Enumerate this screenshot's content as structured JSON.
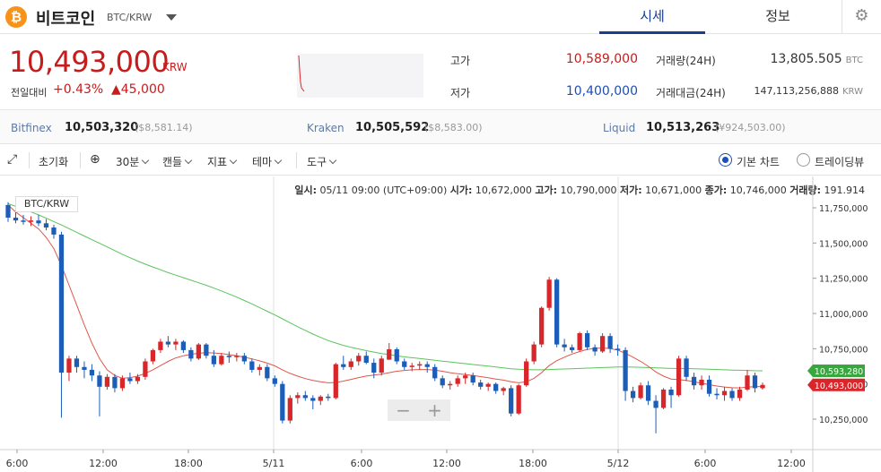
{
  "header": {
    "coin_symbol": "₿",
    "coin_name": "비트코인",
    "pair": "BTC/KRW",
    "tabs": [
      {
        "label": "시세"
      },
      {
        "label": "정보"
      }
    ],
    "settings_icon": "gear-icon"
  },
  "price": {
    "current": "10,493,000",
    "unit": "KRW",
    "change_label": "전일대비",
    "change_pct": "+0.43%",
    "change_amt": "▲45,000",
    "high_label": "고가",
    "high": "10,589,000",
    "low_label": "저가",
    "low": "10,400,000",
    "vol_label": "거래량(24H)",
    "vol": "13,805.505",
    "vol_unit": "BTC",
    "amount_label": "거래대금(24H)",
    "amount": "147,113,256,888",
    "amount_unit": "KRW"
  },
  "exchanges": [
    {
      "name": "Bitfinex",
      "krw": "10,503,320",
      "usd": "($8,581.14)"
    },
    {
      "name": "Kraken",
      "krw": "10,505,592",
      "usd": "($8,583.00)"
    },
    {
      "name": "Liquid",
      "krw": "10,513,263",
      "usd": "(¥924,503.00)"
    }
  ],
  "toolbar": {
    "expand_icon": "expand-icon",
    "reset": "초기화",
    "globe_icon": "globe-icon",
    "interval": "30분",
    "candle": "캔들",
    "indicator": "지표",
    "theme": "테마",
    "tools": "도구",
    "basic_chart": "기본 차트",
    "tradingview": "트레이딩뷰"
  },
  "ohlc": {
    "date_label": "일시:",
    "date": "05/11 09:00 (UTC+09:00)",
    "open_label": "시가:",
    "open": "10,672,000",
    "high_label": "고가:",
    "high": "10,790,000",
    "low_label": "저가:",
    "low": "10,671,000",
    "close_label": "종가:",
    "close": "10,746,000",
    "vol_label": "거래량:",
    "vol": "191.914"
  },
  "zoom": {
    "minus": "−",
    "plus": "+"
  },
  "chart_data": {
    "type": "candlestick",
    "title": "BTC/KRW",
    "x_ticks": [
      "6:00",
      "12:00",
      "18:00",
      "5/11",
      "6:00",
      "12:00",
      "18:00",
      "5/12",
      "6:00",
      "12:00"
    ],
    "y_ticks": [
      "11,750,000",
      "11,500,000",
      "11,250,000",
      "11,000,000",
      "10,750,000",
      "10,500,000",
      "10,250,000"
    ],
    "ylim": [
      10150000,
      11820000
    ],
    "badges": [
      {
        "label": "10,593,280",
        "value": 10593280,
        "color": "#3aa640"
      },
      {
        "label": "10,493,000",
        "value": 10493000,
        "color": "#d9262a"
      }
    ],
    "up_color": "#d9262a",
    "down_color": "#1c5db8",
    "ma_short_color": "#e0564a",
    "ma_long_color": "#5cc35c",
    "candles": [
      [
        11770000,
        11790000,
        11650000,
        11680000
      ],
      [
        11680000,
        11720000,
        11640000,
        11660000
      ],
      [
        11660000,
        11700000,
        11630000,
        11650000
      ],
      [
        11650000,
        11690000,
        11620000,
        11660000
      ],
      [
        11660000,
        11700000,
        11620000,
        11640000
      ],
      [
        11640000,
        11670000,
        11590000,
        11610000
      ],
      [
        11610000,
        11630000,
        11530000,
        11560000
      ],
      [
        11560000,
        11580000,
        10260000,
        10580000
      ],
      [
        10580000,
        10700000,
        10520000,
        10680000
      ],
      [
        10680000,
        10700000,
        10580000,
        10620000
      ],
      [
        10620000,
        10660000,
        10540000,
        10600000
      ],
      [
        10600000,
        10640000,
        10520000,
        10560000
      ],
      [
        10560000,
        10590000,
        10270000,
        10480000
      ],
      [
        10480000,
        10570000,
        10460000,
        10550000
      ],
      [
        10550000,
        10570000,
        10440000,
        10470000
      ],
      [
        10470000,
        10560000,
        10450000,
        10540000
      ],
      [
        10540000,
        10580000,
        10500000,
        10520000
      ],
      [
        10520000,
        10570000,
        10500000,
        10550000
      ],
      [
        10550000,
        10680000,
        10530000,
        10660000
      ],
      [
        10660000,
        10750000,
        10640000,
        10740000
      ],
      [
        10740000,
        10820000,
        10720000,
        10800000
      ],
      [
        10800000,
        10840000,
        10760000,
        10780000
      ],
      [
        10780000,
        10820000,
        10740000,
        10800000
      ],
      [
        10800000,
        10810000,
        10720000,
        10740000
      ],
      [
        10740000,
        10760000,
        10660000,
        10680000
      ],
      [
        10680000,
        10790000,
        10670000,
        10780000
      ],
      [
        10780000,
        10790000,
        10680000,
        10700000
      ],
      [
        10700000,
        10740000,
        10620000,
        10640000
      ],
      [
        10640000,
        10720000,
        10630000,
        10700000
      ],
      [
        10700000,
        10730000,
        10650000,
        10690000
      ],
      [
        10690000,
        10720000,
        10660000,
        10700000
      ],
      [
        10700000,
        10720000,
        10640000,
        10660000
      ],
      [
        10660000,
        10680000,
        10580000,
        10600000
      ],
      [
        10600000,
        10640000,
        10560000,
        10620000
      ],
      [
        10620000,
        10640000,
        10520000,
        10540000
      ],
      [
        10540000,
        10560000,
        10480000,
        10500000
      ],
      [
        10500000,
        10520000,
        10220000,
        10240000
      ],
      [
        10240000,
        10420000,
        10220000,
        10400000
      ],
      [
        10400000,
        10440000,
        10360000,
        10420000
      ],
      [
        10420000,
        10450000,
        10380000,
        10400000
      ],
      [
        10400000,
        10420000,
        10320000,
        10380000
      ],
      [
        10380000,
        10420000,
        10350000,
        10410000
      ],
      [
        10410000,
        10430000,
        10380000,
        10400000
      ],
      [
        10400000,
        10650000,
        10390000,
        10640000
      ],
      [
        10640000,
        10700000,
        10600000,
        10620000
      ],
      [
        10620000,
        10680000,
        10600000,
        10660000
      ],
      [
        10660000,
        10720000,
        10630000,
        10700000
      ],
      [
        10700000,
        10730000,
        10640000,
        10650000
      ],
      [
        10650000,
        10680000,
        10540000,
        10580000
      ],
      [
        10580000,
        10700000,
        10560000,
        10680000
      ],
      [
        10672000,
        10790000,
        10671000,
        10746000
      ],
      [
        10746000,
        10760000,
        10640000,
        10660000
      ],
      [
        10660000,
        10680000,
        10600000,
        10620000
      ],
      [
        10620000,
        10650000,
        10590000,
        10630000
      ],
      [
        10630000,
        10660000,
        10600000,
        10640000
      ],
      [
        10640000,
        10660000,
        10580000,
        10620000
      ],
      [
        10620000,
        10640000,
        10520000,
        10540000
      ],
      [
        10540000,
        10560000,
        10470000,
        10490000
      ],
      [
        10490000,
        10520000,
        10460000,
        10500000
      ],
      [
        10500000,
        10560000,
        10480000,
        10540000
      ],
      [
        10540000,
        10580000,
        10500000,
        10560000
      ],
      [
        10560000,
        10580000,
        10490000,
        10510000
      ],
      [
        10510000,
        10530000,
        10460000,
        10480000
      ],
      [
        10480000,
        10510000,
        10450000,
        10500000
      ],
      [
        10500000,
        10510000,
        10430000,
        10450000
      ],
      [
        10450000,
        10480000,
        10420000,
        10470000
      ],
      [
        10470000,
        10490000,
        10270000,
        10290000
      ],
      [
        10290000,
        10500000,
        10280000,
        10490000
      ],
      [
        10490000,
        10680000,
        10480000,
        10660000
      ],
      [
        10660000,
        10800000,
        10640000,
        10780000
      ],
      [
        10780000,
        11050000,
        10760000,
        11040000
      ],
      [
        11040000,
        11260000,
        11020000,
        11240000
      ],
      [
        11240000,
        11250000,
        10760000,
        10780000
      ],
      [
        10780000,
        10820000,
        10730000,
        10760000
      ],
      [
        10760000,
        10780000,
        10720000,
        10740000
      ],
      [
        10740000,
        10870000,
        10730000,
        10860000
      ],
      [
        10860000,
        10880000,
        10740000,
        10760000
      ],
      [
        10760000,
        10780000,
        10700000,
        10730000
      ],
      [
        10730000,
        10860000,
        10720000,
        10840000
      ],
      [
        10840000,
        10860000,
        10720000,
        10750000
      ],
      [
        10750000,
        10780000,
        10700000,
        10740000
      ],
      [
        10740000,
        10760000,
        10380000,
        10450000
      ],
      [
        10450000,
        10480000,
        10370000,
        10400000
      ],
      [
        10400000,
        10510000,
        10390000,
        10490000
      ],
      [
        10490000,
        10520000,
        10350000,
        10380000
      ],
      [
        10380000,
        10420000,
        10150000,
        10330000
      ],
      [
        10330000,
        10470000,
        10320000,
        10460000
      ],
      [
        10460000,
        10480000,
        10330000,
        10420000
      ],
      [
        10420000,
        10700000,
        10410000,
        10680000
      ],
      [
        10680000,
        10700000,
        10520000,
        10550000
      ],
      [
        10550000,
        10580000,
        10460000,
        10490000
      ],
      [
        10490000,
        10560000,
        10460000,
        10530000
      ],
      [
        10530000,
        10560000,
        10410000,
        10430000
      ],
      [
        10430000,
        10470000,
        10390000,
        10420000
      ],
      [
        10420000,
        10480000,
        10380000,
        10450000
      ],
      [
        10450000,
        10470000,
        10380000,
        10400000
      ],
      [
        10400000,
        10480000,
        10380000,
        10460000
      ],
      [
        10460000,
        10600000,
        10450000,
        10560000
      ],
      [
        10560000,
        10580000,
        10440000,
        10470000
      ],
      [
        10470000,
        10510000,
        10460000,
        10493000
      ]
    ],
    "ma_short": [
      11770000,
      11720000,
      11680000,
      11640000,
      11600000,
      11540000,
      11460000,
      11340000,
      11200000,
      11060000,
      10920000,
      10790000,
      10680000,
      10600000,
      10560000,
      10540000,
      10545000,
      10555000,
      10575000,
      10600000,
      10630000,
      10660000,
      10685000,
      10700000,
      10710000,
      10718000,
      10722000,
      10720000,
      10715000,
      10708000,
      10700000,
      10690000,
      10678000,
      10664000,
      10648000,
      10628000,
      10600000,
      10575000,
      10555000,
      10538000,
      10525000,
      10515000,
      10508000,
      10510000,
      10520000,
      10532000,
      10545000,
      10556000,
      10563000,
      10570000,
      10580000,
      10590000,
      10596000,
      10600000,
      10602000,
      10602000,
      10598000,
      10590000,
      10580000,
      10572000,
      10566000,
      10560000,
      10552000,
      10544000,
      10535000,
      10527000,
      10515000,
      10508000,
      10515000,
      10540000,
      10580000,
      10630000,
      10665000,
      10690000,
      10712000,
      10730000,
      10745000,
      10752000,
      10755000,
      10750000,
      10740000,
      10718000,
      10690000,
      10660000,
      10625000,
      10585000,
      10555000,
      10535000,
      10530000,
      10525000,
      10515000,
      10505000,
      10495000,
      10485000,
      10478000,
      10473000,
      10472000,
      10478000,
      10480000,
      10482000
    ],
    "ma_long": [
      11780000,
      11760000,
      11740000,
      11720000,
      11700000,
      11676000,
      11652000,
      11628000,
      11602000,
      11576000,
      11550000,
      11524000,
      11498000,
      11472000,
      11446000,
      11420000,
      11396000,
      11372000,
      11350000,
      11330000,
      11310000,
      11290000,
      11272000,
      11254000,
      11236000,
      11218000,
      11200000,
      11180000,
      11160000,
      11138000,
      11116000,
      11092000,
      11068000,
      11042000,
      11016000,
      10990000,
      10962000,
      10934000,
      10906000,
      10880000,
      10854000,
      10830000,
      10808000,
      10790000,
      10774000,
      10760000,
      10748000,
      10736000,
      10726000,
      10716000,
      10708000,
      10700000,
      10692000,
      10686000,
      10680000,
      10674000,
      10668000,
      10662000,
      10656000,
      10650000,
      10644000,
      10638000,
      10632000,
      10626000,
      10620000,
      10614000,
      10608000,
      10604000,
      10602000,
      10600000,
      10600000,
      10602000,
      10604000,
      10606000,
      10608000,
      10610000,
      10612000,
      10614000,
      10616000,
      10618000,
      10620000,
      10620000,
      10619000,
      10618000,
      10616000,
      10614000,
      10612000,
      10610000,
      10610000,
      10609000,
      10608000,
      10606000,
      10604000,
      10602000,
      10600000,
      10598000,
      10597000,
      10596000,
      10594000,
      10593280
    ]
  }
}
